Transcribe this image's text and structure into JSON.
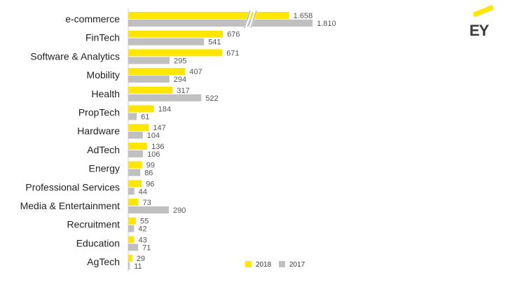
{
  "logo": {
    "text": "EY",
    "accent_color": "#ffe600"
  },
  "chart_data": {
    "type": "bar",
    "orientation": "horizontal",
    "categories": [
      "e-commerce",
      "FinTech",
      "Software & Analytics",
      "Mobility",
      "Health",
      "PropTech",
      "Hardware",
      "AdTech",
      "Energy",
      "Professional Services",
      "Media & Entertainment",
      "Recruitment",
      "Education",
      "AgTech"
    ],
    "series": [
      {
        "name": "2018",
        "color": "#ffe600",
        "values": [
          1658,
          676,
          671,
          407,
          317,
          184,
          147,
          136,
          99,
          96,
          73,
          55,
          43,
          29
        ],
        "labels": [
          "1.658",
          "676",
          "671",
          "407",
          "317",
          "184",
          "147",
          "136",
          "99",
          "96",
          "73",
          "55",
          "43",
          "29"
        ]
      },
      {
        "name": "2017",
        "color": "#c0c0c0",
        "values": [
          1810,
          541,
          295,
          294,
          522,
          61,
          104,
          106,
          86,
          44,
          290,
          42,
          71,
          11
        ],
        "labels": [
          "1.810",
          "541",
          "295",
          "294",
          "522",
          "61",
          "104",
          "106",
          "86",
          "44",
          "290",
          "42",
          "71",
          "11"
        ]
      }
    ],
    "axis_break": true,
    "legend_position": "bottom-right",
    "grid": false
  }
}
